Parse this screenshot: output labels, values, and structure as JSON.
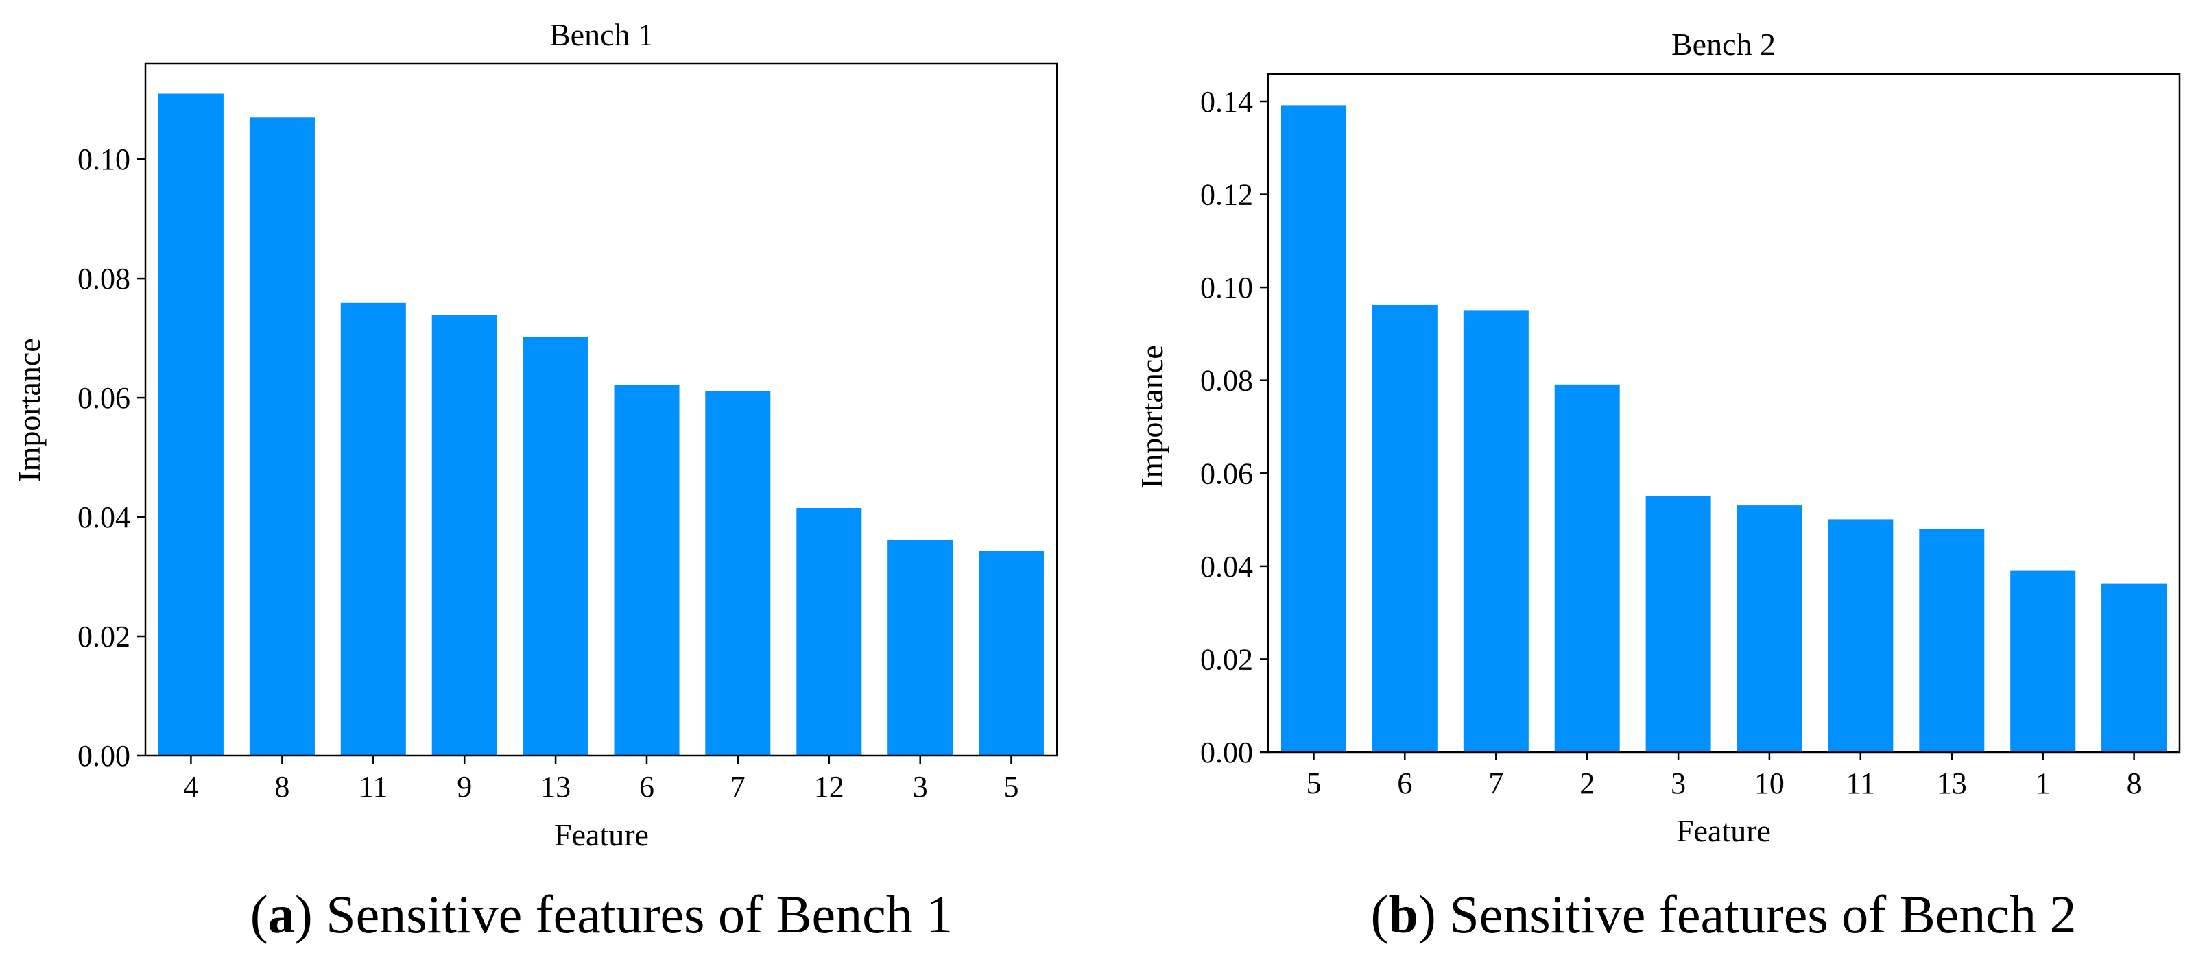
{
  "chart_data": [
    {
      "type": "bar",
      "title": "Bench 1",
      "xlabel": "Feature",
      "ylabel": "Importance",
      "categories": [
        "4",
        "8",
        "11",
        "9",
        "13",
        "6",
        "7",
        "12",
        "3",
        "5"
      ],
      "values": [
        0.111,
        0.107,
        0.0759,
        0.0739,
        0.0702,
        0.0621,
        0.0611,
        0.0415,
        0.0362,
        0.0343
      ],
      "ylim": [
        0,
        0.116
      ],
      "yticks": [
        0.0,
        0.02,
        0.04,
        0.06,
        0.08,
        0.1
      ],
      "ytick_labels": [
        "0.00",
        "0.02",
        "0.04",
        "0.06",
        "0.08",
        "0.10"
      ],
      "bar_color": "#0090FF",
      "grid": false,
      "caption": {
        "letter": "a",
        "text": "Sensitive features of Bench 1"
      }
    },
    {
      "type": "bar",
      "title": "Bench 2",
      "xlabel": "Feature",
      "ylabel": "Importance",
      "categories": [
        "5",
        "6",
        "7",
        "2",
        "3",
        "10",
        "11",
        "13",
        "1",
        "8"
      ],
      "values": [
        0.1392,
        0.0962,
        0.0951,
        0.0791,
        0.0551,
        0.0531,
        0.0501,
        0.048,
        0.039,
        0.0362
      ],
      "ylim": [
        0,
        0.1459
      ],
      "yticks": [
        0.0,
        0.02,
        0.04,
        0.06,
        0.08,
        0.1,
        0.12,
        0.14
      ],
      "ytick_labels": [
        "0.00",
        "0.02",
        "0.04",
        "0.06",
        "0.08",
        "0.10",
        "0.12",
        "0.14"
      ],
      "bar_color": "#0090FF",
      "grid": false,
      "caption": {
        "letter": "b",
        "text": "Sensitive features of Bench 2"
      }
    }
  ]
}
